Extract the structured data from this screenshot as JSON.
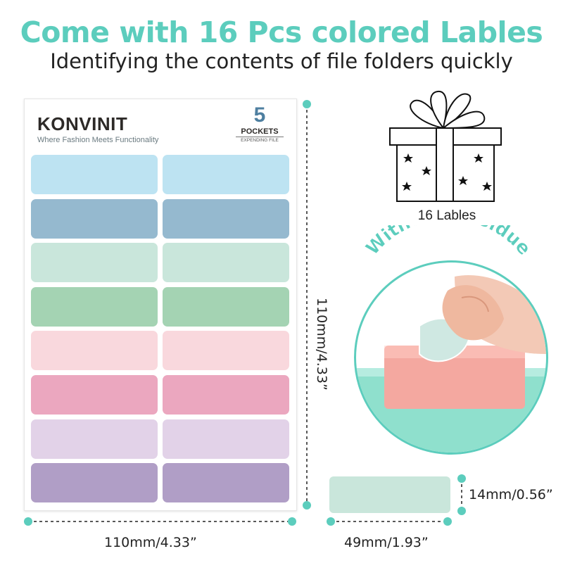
{
  "headline": "Come with 16 Pcs colored Lables",
  "subline": "Identifying the contents of file folders quickly",
  "sheet": {
    "brand": "KONVINIT",
    "tagline": "Where Fashion Meets Functionality",
    "pockets_number": "5",
    "pockets_word": "POCKETS",
    "pockets_sub": "EXPENDING FILE",
    "label_colors": [
      "#bde3f2",
      "#95b9cf",
      "#c9e6db",
      "#a4d3b3",
      "#f9d8dd",
      "#eba7bf",
      "#e2d2e8",
      "#b09ec6"
    ]
  },
  "gift": {
    "label": "16 Lables",
    "icon": "gift-box-icon"
  },
  "circle": {
    "arc_text": "Without Residue",
    "accent": "#5ccdbd"
  },
  "dimensions": {
    "sheet_height": "110mm/4.33”",
    "sheet_width": "110mm/4.33”",
    "label_width": "49mm/1.93”",
    "label_height": "14mm/0.56”"
  },
  "sample_label_color": "#c9e6db",
  "dimension_line_color": "#222222"
}
